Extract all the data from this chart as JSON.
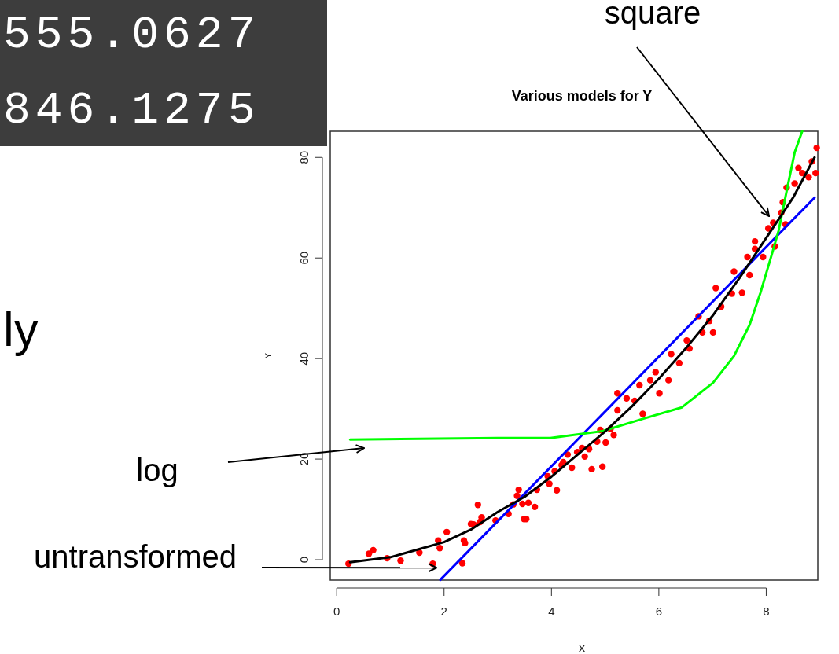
{
  "chart_data": {
    "type": "scatter",
    "title": "Various models for Y",
    "xlabel": "X",
    "ylabel": "Y",
    "xlim": [
      -0.12,
      8.96
    ],
    "ylim": [
      -4.06,
      85.2
    ],
    "xticks": [
      0,
      2,
      4,
      6,
      8
    ],
    "yticks": [
      0,
      20,
      40,
      60,
      80
    ],
    "annotations": [
      "555.0627",
      "846.1275",
      "ly",
      "square",
      "log",
      {
        "text": "untransformed",
        "x": 1.86,
        "y": -1.6
      }
    ],
    "series": [
      {
        "color": "#ff0000",
        "marker": "circle",
        "x": [
          0.22,
          0.6,
          0.68,
          0.94,
          1.19,
          1.54,
          1.79,
          1.89,
          1.92,
          2.05,
          2.34,
          2.37,
          2.39,
          2.5,
          2.55,
          2.63,
          2.67,
          2.7,
          2.96,
          3.2,
          3.29,
          3.36,
          3.39,
          3.46,
          3.49,
          3.53,
          3.57,
          3.69,
          3.73,
          3.93,
          3.96,
          4.06,
          4.1,
          4.19,
          4.22,
          4.3,
          4.38,
          4.48,
          4.57,
          4.62,
          4.7,
          4.75,
          4.85,
          4.95,
          5.01,
          5.1,
          4.91,
          5.16,
          5.23,
          5.23,
          5.4,
          5.55,
          5.64,
          5.7,
          5.84,
          5.94,
          6.01,
          6.18,
          6.23,
          6.38,
          6.52,
          6.57,
          6.74,
          6.81,
          6.94,
          7.01,
          7.06,
          7.16,
          7.36,
          7.4,
          7.55,
          7.69,
          7.65,
          7.79,
          7.94,
          7.79,
          8.04,
          8.16,
          8.13,
          8.28,
          8.36,
          8.31,
          8.38,
          8.53,
          8.6,
          8.67,
          8.79,
          8.85,
          8.92,
          8.94
        ],
        "values": [
          -0.8,
          1.2,
          1.9,
          0.3,
          -0.2,
          1.4,
          -0.8,
          3.8,
          2.3,
          5.5,
          -0.7,
          3.8,
          3.3,
          7.1,
          7,
          10.9,
          7.5,
          8.4,
          7.8,
          9.1,
          11,
          12.7,
          13.9,
          11.1,
          8.1,
          8.1,
          11.3,
          10.5,
          13.9,
          16.6,
          15.1,
          17.6,
          13.8,
          18.8,
          19.4,
          20.9,
          18.3,
          21.4,
          22.2,
          20.5,
          22,
          18,
          23.5,
          18.5,
          23.3,
          26,
          25.8,
          24.8,
          29.7,
          33.1,
          32.1,
          31.6,
          34.7,
          29,
          35.7,
          37.3,
          33.1,
          35.7,
          40.9,
          39.1,
          43.6,
          42,
          48.4,
          45.2,
          47.5,
          45.2,
          54,
          50.3,
          52.9,
          57.3,
          53.1,
          56.6,
          60.2,
          61.8,
          60.2,
          63.3,
          65.9,
          62.3,
          67,
          69,
          66.7,
          71.1,
          74,
          74.8,
          77.9,
          76.9,
          76.1,
          79.2,
          76.9,
          81.9
        ]
      },
      {
        "type": "line",
        "color": "#0000ff",
        "x": [
          1.93,
          8.9
        ],
        "values": [
          -4,
          72
        ]
      },
      {
        "type": "line",
        "color": "#00ff00",
        "x": [
          0.25,
          3,
          3.98,
          4.96,
          5.7,
          6.43,
          7.01,
          7.4,
          7.69,
          7.89,
          8.09,
          8.23,
          8.38,
          8.53,
          8.67
        ],
        "values": [
          23.9,
          24.2,
          24.2,
          25.6,
          28,
          30.3,
          35.2,
          40.5,
          46.7,
          53,
          60.2,
          65.4,
          73.3,
          81,
          85.2
        ]
      },
      {
        "type": "line",
        "color": "#000000",
        "x": [
          0.25,
          1,
          1.5,
          2,
          2.5,
          3,
          3.5,
          4,
          4.5,
          5,
          5.5,
          6,
          6.5,
          7,
          7.5,
          8,
          8.5,
          8.9
        ],
        "values": [
          -0.5,
          0.5,
          2,
          3.5,
          6,
          9.5,
          12.5,
          16.5,
          21,
          25.5,
          30.5,
          36,
          42,
          48.5,
          56,
          64,
          72,
          80
        ]
      }
    ]
  }
}
